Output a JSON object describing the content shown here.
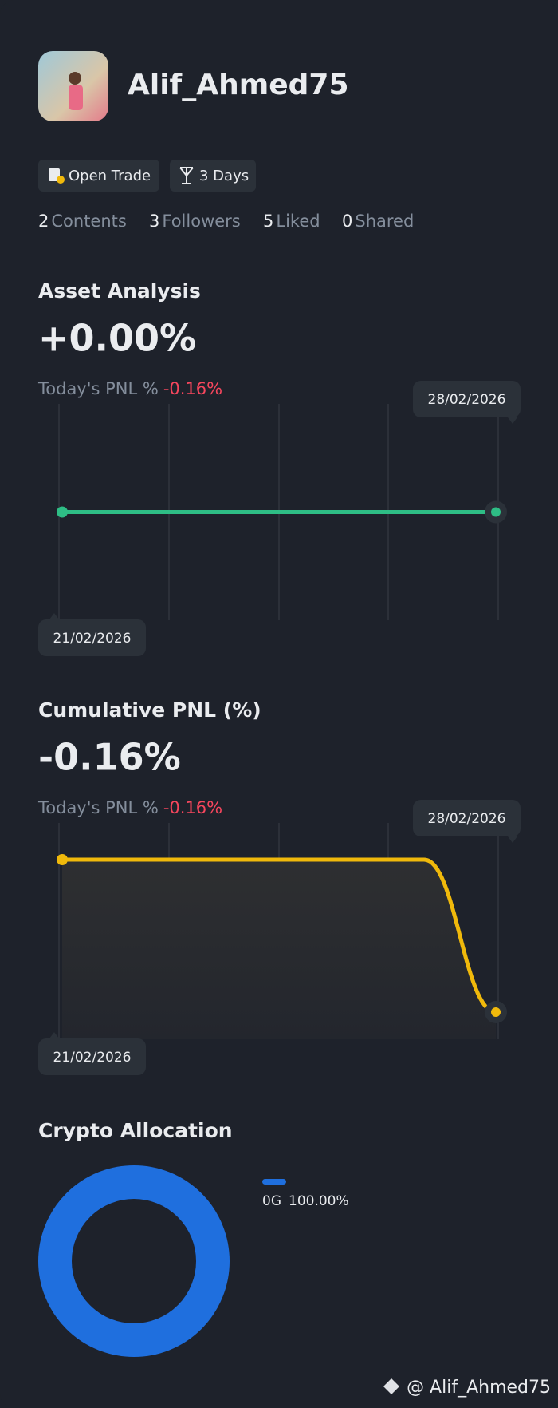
{
  "profile": {
    "name": "Alif_Ahmed75",
    "badges": [
      "Open Trade",
      "3 Days"
    ],
    "stats": [
      {
        "count": "2",
        "label": "Contents"
      },
      {
        "count": "3",
        "label": "Followers"
      },
      {
        "count": "5",
        "label": "Liked"
      },
      {
        "count": "0",
        "label": "Shared"
      }
    ]
  },
  "asset_analysis": {
    "title": "Asset Analysis",
    "value": "+0.00%",
    "pnl_label": "Today's PNL %",
    "pnl_value": "-0.16%",
    "dates": [
      "21/02/2026",
      "28/02/2026"
    ],
    "values": [
      0,
      0
    ],
    "color": "#2ebd85"
  },
  "cumulative_pnl": {
    "title": "Cumulative PNL (%)",
    "value": "-0.16%",
    "pnl_label": "Today's PNL %",
    "pnl_value": "-0.16%",
    "dates": [
      "21/02/2026",
      "28/02/2026"
    ],
    "values": [
      0,
      -0.16
    ],
    "color": "#f0b90b"
  },
  "crypto_allocation": {
    "title": "Crypto Allocation",
    "categories": [
      "0G"
    ],
    "values": [
      100
    ],
    "value_labels": [
      "100.00%"
    ],
    "color": "#1f6fde"
  },
  "watermark": "@ Alif_Ahmed75"
}
